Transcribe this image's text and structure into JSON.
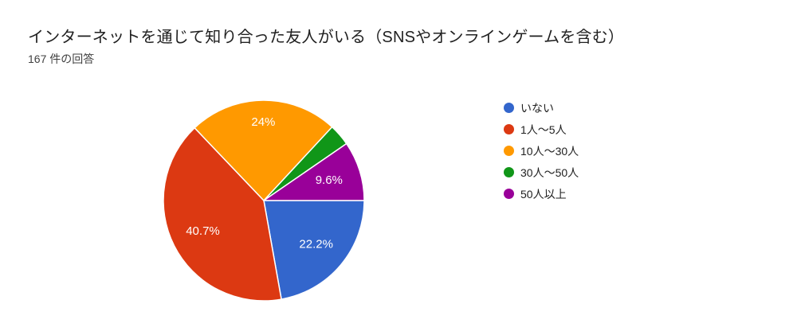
{
  "header": {
    "title": "インターネットを通じて知り合った友人がいる（SNSやオンラインゲームを含む）",
    "responses_count": "167 件の回答"
  },
  "chart_data": {
    "type": "pie",
    "title": "インターネットを通じて知り合った友人がいる（SNSやオンラインゲームを含む）",
    "subtitle": "167 件の回答",
    "categories": [
      "いない",
      "1人〜5人",
      "10人〜30人",
      "30人〜50人",
      "50人以上"
    ],
    "values": [
      22.2,
      40.7,
      24.0,
      3.5,
      9.6
    ],
    "displayed_labels": [
      "22.2%",
      "40.7%",
      "24%",
      "",
      "9.6%"
    ],
    "colors": [
      "#3366CC",
      "#DC3912",
      "#FF9900",
      "#109618",
      "#990099"
    ],
    "label_text_color": "#ffffff",
    "slice_border_color": "#ffffff",
    "legend_position": "right",
    "start_angle_deg": 0,
    "direction": "clockwise",
    "total_responses": 167
  }
}
